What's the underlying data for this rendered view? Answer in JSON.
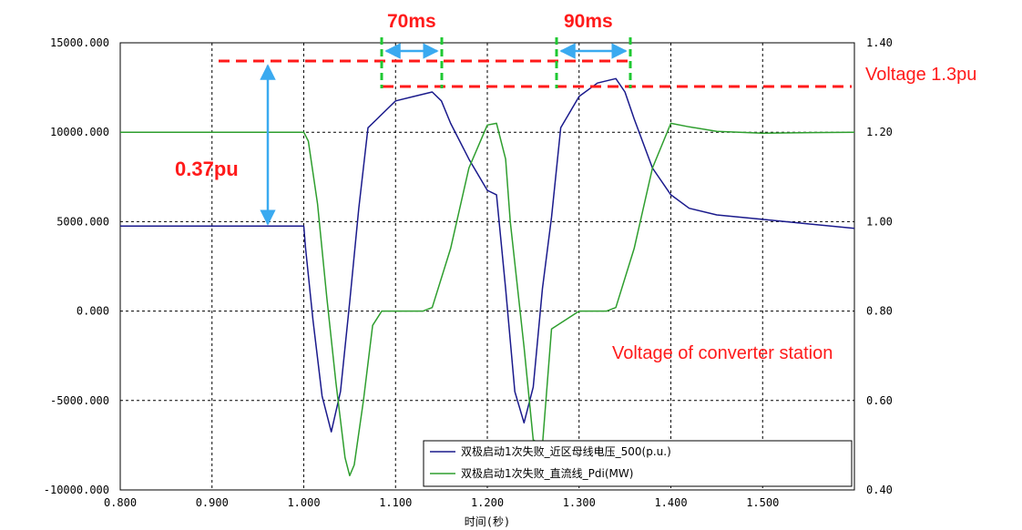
{
  "chart_data": {
    "type": "line",
    "title": "",
    "xlabel": "时间(秒)",
    "xlim": [
      0.8,
      1.6
    ],
    "x_ticks": [
      "0.800",
      "0.900",
      "1.000",
      "1.100",
      "1.200",
      "1.300",
      "1.400",
      "1.500"
    ],
    "ylim_left": [
      -10000,
      15000
    ],
    "y_ticks_left": [
      "15000.000",
      "10000.000",
      "5000.000",
      "0.000",
      "-5000.000",
      "-10000.000"
    ],
    "ylim_right": [
      0.4,
      1.4
    ],
    "y_ticks_right": [
      "1.40",
      "1.20",
      "1.00",
      "0.80",
      "0.60",
      "0.40"
    ],
    "grid": true,
    "legend_position": "bottom-right",
    "series": [
      {
        "name": "双极启动1次失败_近区母线电压_500(p.u.)",
        "axis": "right",
        "color": "#1a1a8c",
        "x": [
          0.8,
          1.0,
          1.002,
          1.01,
          1.02,
          1.03,
          1.04,
          1.05,
          1.06,
          1.07,
          1.08,
          1.09,
          1.1,
          1.12,
          1.14,
          1.15,
          1.16,
          1.18,
          1.2,
          1.21,
          1.22,
          1.23,
          1.24,
          1.25,
          1.26,
          1.27,
          1.28,
          1.3,
          1.32,
          1.34,
          1.35,
          1.36,
          1.38,
          1.4,
          1.42,
          1.45,
          1.5,
          1.55,
          1.6
        ],
        "values": [
          0.99,
          0.99,
          0.94,
          0.78,
          0.61,
          0.53,
          0.62,
          0.82,
          1.03,
          1.21,
          1.23,
          1.25,
          1.27,
          1.28,
          1.29,
          1.27,
          1.22,
          1.14,
          1.07,
          1.06,
          0.85,
          0.62,
          0.55,
          0.63,
          0.85,
          1.01,
          1.21,
          1.28,
          1.31,
          1.32,
          1.29,
          1.23,
          1.12,
          1.06,
          1.03,
          1.015,
          1.005,
          0.995,
          0.985
        ]
      },
      {
        "name": "双极启动1次失败_直流线_Pdi(MW)",
        "axis": "left",
        "color": "#2e9e2e",
        "x": [
          0.8,
          1.0,
          1.005,
          1.015,
          1.025,
          1.035,
          1.045,
          1.05,
          1.055,
          1.065,
          1.075,
          1.085,
          1.1,
          1.13,
          1.14,
          1.16,
          1.18,
          1.2,
          1.21,
          1.22,
          1.225,
          1.24,
          1.25,
          1.26,
          1.27,
          1.3,
          1.33,
          1.34,
          1.36,
          1.38,
          1.4,
          1.42,
          1.45,
          1.5,
          1.6
        ],
        "values": [
          10000,
          10000,
          9500,
          6000,
          800,
          -4000,
          -8200,
          -9200,
          -8600,
          -5000,
          -800,
          0,
          0,
          0,
          200,
          3500,
          8000,
          10400,
          10500,
          8500,
          5000,
          -2000,
          -7200,
          -7500,
          -1000,
          0,
          0,
          200,
          3500,
          8000,
          10500,
          10300,
          10050,
          9950,
          10000
        ]
      }
    ],
    "annotations": {
      "delta_70": "70ms",
      "delta_90": "90ms",
      "delta_pu": "0.37pu",
      "voltage_13": "Voltage  1.3pu",
      "voltage_station": "Voltage of converter station"
    }
  }
}
